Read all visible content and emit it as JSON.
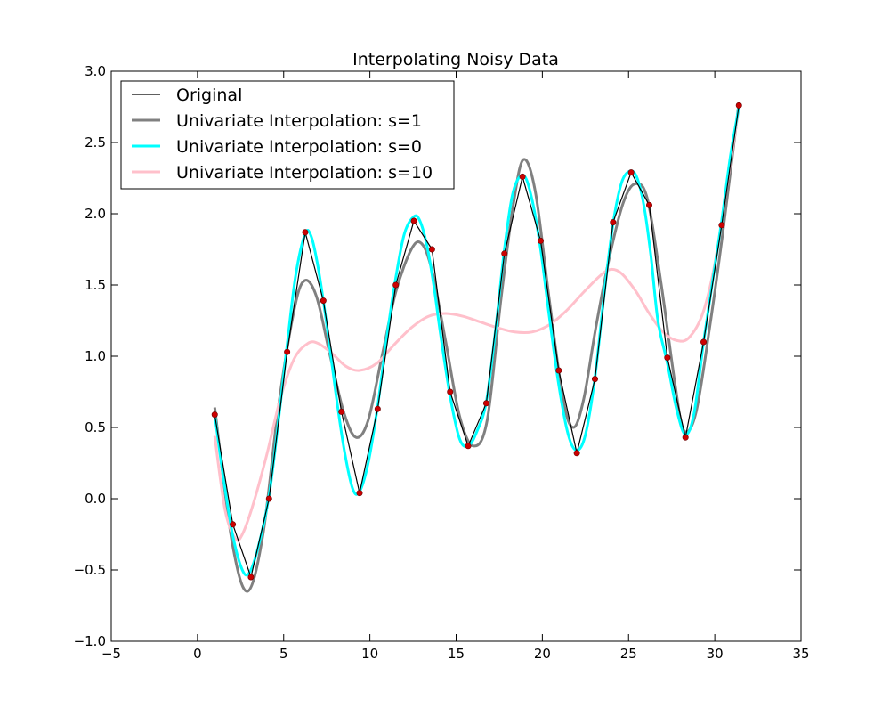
{
  "chart_data": {
    "type": "line",
    "title": "Interpolating Noisy Data",
    "xlabel": "",
    "ylabel": "",
    "xlim": [
      -5,
      35
    ],
    "ylim": [
      -1.0,
      3.0
    ],
    "x_ticks": [
      -5,
      0,
      5,
      10,
      15,
      20,
      25,
      30,
      35
    ],
    "x_tick_labels": [
      "−5",
      "0",
      "5",
      "10",
      "15",
      "20",
      "25",
      "30",
      "35"
    ],
    "y_ticks": [
      -1.0,
      -0.5,
      0.0,
      0.5,
      1.0,
      1.5,
      2.0,
      2.5,
      3.0
    ],
    "y_tick_labels": [
      "−1.0",
      "−0.5",
      "0.0",
      "0.5",
      "1.0",
      "1.5",
      "2.0",
      "2.5",
      "3.0"
    ],
    "grid": false,
    "legend_position": "upper-left",
    "points": {
      "color": "#cc0000",
      "x": [
        1.0,
        2.05,
        3.1,
        4.15,
        5.2,
        6.25,
        7.3,
        8.35,
        9.4,
        10.45,
        11.5,
        12.55,
        13.6,
        14.65,
        15.7,
        16.75,
        17.8,
        18.85,
        19.9,
        20.95,
        22.0,
        23.05,
        24.1,
        25.15,
        26.2,
        27.25,
        28.3,
        29.35,
        30.4,
        31.4
      ],
      "y": [
        0.59,
        -0.18,
        -0.55,
        0.0,
        1.03,
        1.87,
        1.39,
        0.61,
        0.04,
        0.63,
        1.5,
        1.95,
        1.75,
        0.75,
        0.37,
        0.67,
        1.72,
        2.26,
        1.81,
        0.9,
        0.32,
        0.84,
        1.94,
        2.29,
        2.06,
        0.99,
        0.43,
        1.1,
        1.92,
        2.76
      ]
    },
    "series": [
      {
        "name": "Original",
        "color": "#000000",
        "style": "polyline",
        "x": [
          1.0,
          2.05,
          3.1,
          4.15,
          5.2,
          6.25,
          7.3,
          8.35,
          9.4,
          10.45,
          11.5,
          12.55,
          13.6,
          14.65,
          15.7,
          16.75,
          17.8,
          18.85,
          19.9,
          20.95,
          22.0,
          23.05,
          24.1,
          25.15,
          26.2,
          27.25,
          28.3,
          29.35,
          30.4,
          31.4
        ],
        "y": [
          0.59,
          -0.18,
          -0.55,
          0.0,
          1.03,
          1.87,
          1.39,
          0.61,
          0.04,
          0.63,
          1.5,
          1.95,
          1.75,
          0.75,
          0.37,
          0.67,
          1.72,
          2.26,
          1.81,
          0.9,
          0.32,
          0.84,
          1.94,
          2.29,
          2.06,
          0.99,
          0.43,
          1.1,
          1.92,
          2.76
        ]
      },
      {
        "name": "Univariate Interpolation: s=1",
        "color": "#808080",
        "style": "smooth",
        "x": [
          1.0,
          2.0,
          2.9,
          3.8,
          4.7,
          5.6,
          6.2,
          6.9,
          7.7,
          8.5,
          9.2,
          9.9,
          10.7,
          11.5,
          12.4,
          13.0,
          13.6,
          14.4,
          15.2,
          16.0,
          16.8,
          17.6,
          18.3,
          18.9,
          19.6,
          20.4,
          21.2,
          21.8,
          22.4,
          23.1,
          23.9,
          24.7,
          25.4,
          26.1,
          26.9,
          27.7,
          28.2,
          28.9,
          29.7,
          30.5,
          31.4
        ],
        "y": [
          0.64,
          -0.3,
          -0.65,
          -0.25,
          0.65,
          1.32,
          1.53,
          1.42,
          1.0,
          0.6,
          0.43,
          0.55,
          1.0,
          1.45,
          1.75,
          1.79,
          1.6,
          1.1,
          0.58,
          0.37,
          0.55,
          1.4,
          2.05,
          2.38,
          2.15,
          1.4,
          0.7,
          0.5,
          0.7,
          1.2,
          1.7,
          2.08,
          2.21,
          2.1,
          1.5,
          0.8,
          0.48,
          0.6,
          1.2,
          1.9,
          2.78
        ]
      },
      {
        "name": "Univariate Interpolation: s=0",
        "color": "#00ffff",
        "style": "smooth",
        "x": [
          1.0,
          1.5,
          2.05,
          2.6,
          3.0,
          3.5,
          4.15,
          4.7,
          5.2,
          5.7,
          6.25,
          6.6,
          7.0,
          7.5,
          8.0,
          8.5,
          9.0,
          9.4,
          9.9,
          10.45,
          11.0,
          11.5,
          12.0,
          12.55,
          12.9,
          13.3,
          13.7,
          14.1,
          14.65,
          15.2,
          15.7,
          16.2,
          16.75,
          17.3,
          17.8,
          18.3,
          18.9,
          19.4,
          19.9,
          20.4,
          20.95,
          21.5,
          22.0,
          22.5,
          23.05,
          23.6,
          24.1,
          24.6,
          25.1,
          25.5,
          25.9,
          26.3,
          26.7,
          27.25,
          27.8,
          28.3,
          28.8,
          29.35,
          29.9,
          30.4,
          30.9,
          31.4
        ],
        "y": [
          0.59,
          0.15,
          -0.26,
          -0.5,
          -0.52,
          -0.35,
          0.02,
          0.55,
          1.08,
          1.57,
          1.86,
          1.84,
          1.62,
          1.22,
          0.76,
          0.35,
          0.07,
          0.05,
          0.25,
          0.65,
          1.15,
          1.55,
          1.86,
          1.98,
          1.95,
          1.78,
          1.5,
          1.15,
          0.72,
          0.42,
          0.37,
          0.47,
          0.68,
          1.2,
          1.75,
          2.15,
          2.27,
          2.1,
          1.75,
          1.28,
          0.8,
          0.45,
          0.34,
          0.45,
          0.85,
          1.45,
          1.93,
          2.22,
          2.3,
          2.25,
          2.05,
          1.7,
          1.25,
          0.95,
          0.62,
          0.45,
          0.6,
          1.1,
          1.55,
          1.95,
          2.4,
          2.75
        ]
      },
      {
        "name": "Univariate Interpolation: s=10",
        "color": "#ffc0cb",
        "style": "smooth",
        "x": [
          1.0,
          1.6,
          2.2,
          2.6,
          3.2,
          4.0,
          4.8,
          5.6,
          6.4,
          7.0,
          7.8,
          8.6,
          9.4,
          10.4,
          11.4,
          12.4,
          13.4,
          14.4,
          15.4,
          16.4,
          17.4,
          18.4,
          19.4,
          20.4,
          21.4,
          22.4,
          23.4,
          24.0,
          24.6,
          25.4,
          26.2,
          27.0,
          27.8,
          28.5,
          29.3,
          30.0,
          30.7,
          31.4
        ],
        "y": [
          0.44,
          -0.08,
          -0.28,
          -0.25,
          -0.05,
          0.3,
          0.7,
          0.98,
          1.09,
          1.09,
          1.02,
          0.93,
          0.9,
          0.95,
          1.08,
          1.2,
          1.28,
          1.3,
          1.28,
          1.24,
          1.2,
          1.17,
          1.17,
          1.22,
          1.32,
          1.45,
          1.57,
          1.61,
          1.58,
          1.46,
          1.3,
          1.17,
          1.11,
          1.13,
          1.3,
          1.65,
          2.2,
          2.74
        ]
      }
    ]
  }
}
